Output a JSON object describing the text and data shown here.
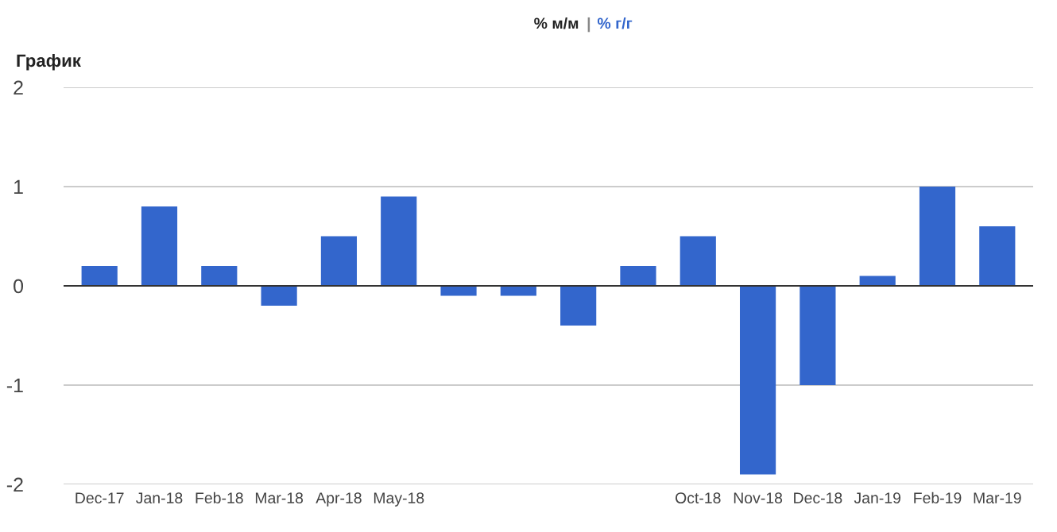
{
  "chart_data": {
    "type": "bar",
    "title": "График",
    "annotations": [
      "% м/м",
      "|",
      "% г/г"
    ],
    "categories": [
      "Dec-17",
      "Jan-18",
      "Feb-18",
      "Mar-18",
      "Apr-18",
      "May-18",
      null,
      null,
      null,
      null,
      "Oct-18",
      "Nov-18",
      "Dec-18",
      "Jan-19",
      "Feb-19",
      "Mar-19"
    ],
    "values": [
      0.2,
      0.8,
      0.2,
      -0.2,
      0.5,
      0.9,
      -0.1,
      -0.1,
      -0.4,
      0.2,
      0.5,
      -1.9,
      -1.0,
      0.1,
      1.0,
      0.6
    ],
    "color": "#3366cc",
    "ylim": [
      -2,
      2
    ],
    "yticks": [
      -2,
      -1,
      0,
      1,
      2
    ],
    "grid": "y"
  }
}
